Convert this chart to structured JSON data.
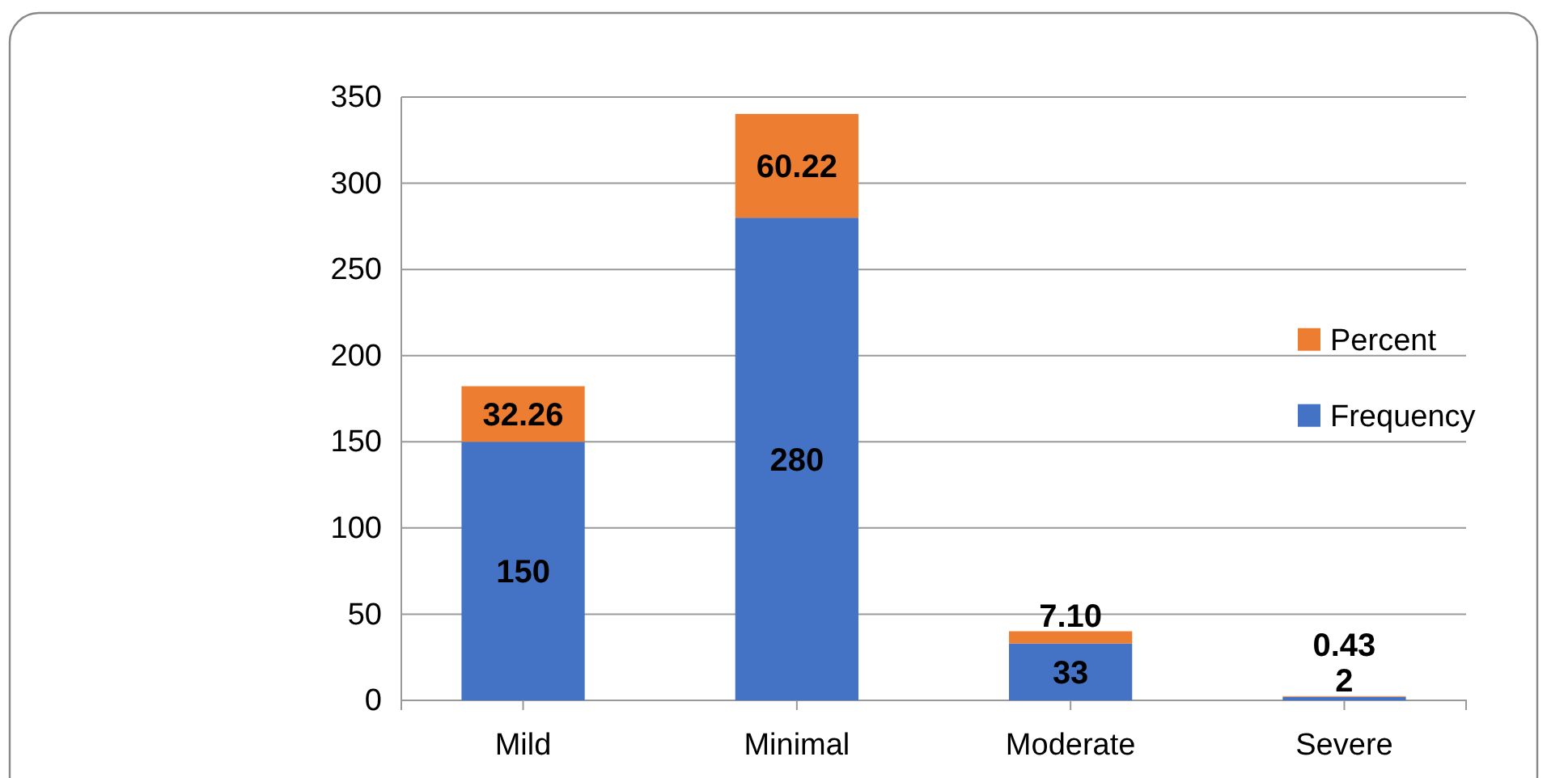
{
  "chart_data": {
    "type": "bar",
    "stacked": true,
    "categories": [
      "Mild",
      "Minimal",
      "Moderate",
      "Severe"
    ],
    "series": [
      {
        "name": "Frequency",
        "color": "#4472c4",
        "values": [
          150,
          280,
          33,
          2
        ],
        "value_labels": [
          "150",
          "280",
          "33",
          "2"
        ]
      },
      {
        "name": "Percent",
        "color": "#ed7d31",
        "values": [
          32.26,
          60.22,
          7.1,
          0.43
        ],
        "value_labels": [
          "32.26",
          "60.22",
          "7.10",
          "0.43"
        ]
      }
    ],
    "ylim": [
      0,
      350
    ],
    "yticks": [
      0,
      50,
      100,
      150,
      200,
      250,
      300,
      350
    ],
    "grid": "y",
    "legend": "right"
  }
}
